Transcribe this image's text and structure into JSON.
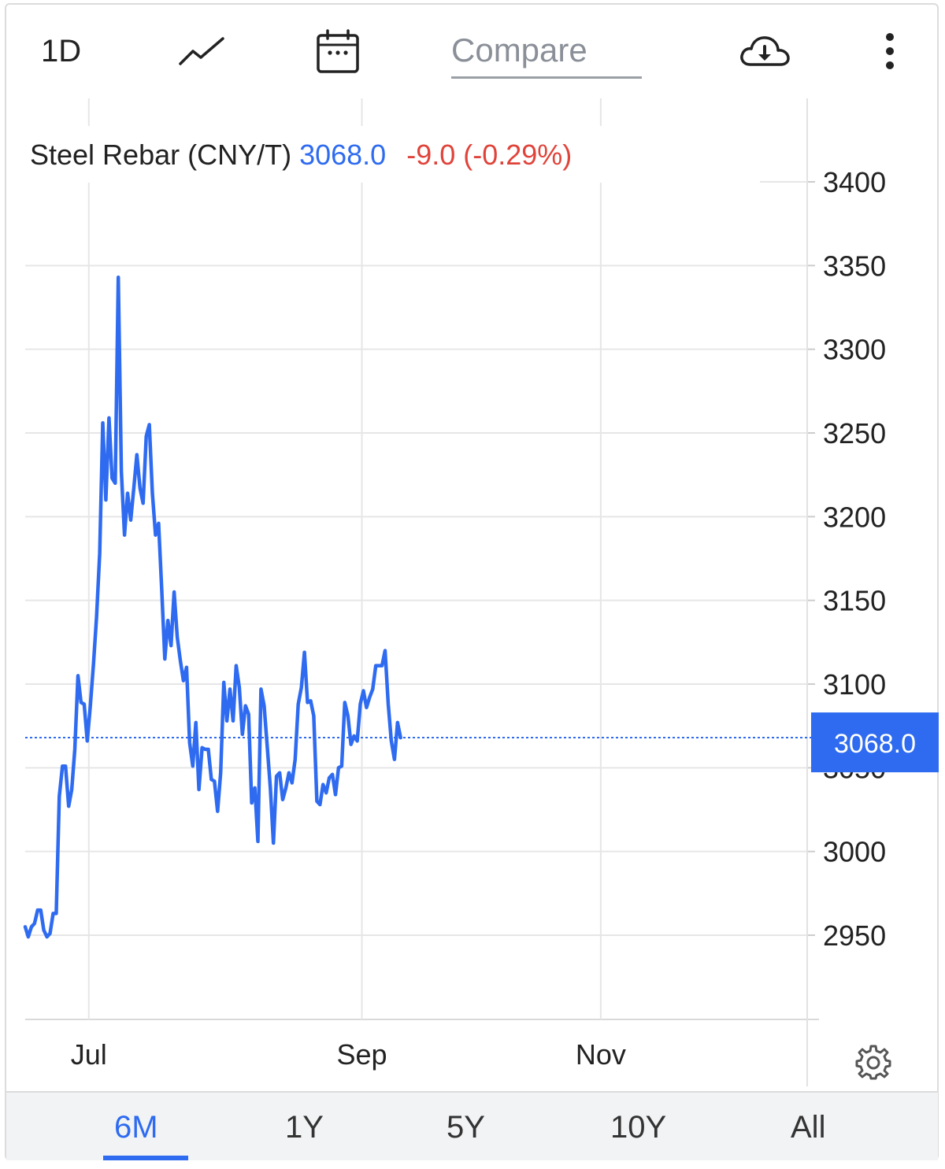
{
  "toolbar": {
    "period_label": "1D",
    "line_icon": "line-chart-icon",
    "calendar_icon": "calendar-icon",
    "compare_placeholder": "Compare",
    "download_icon": "cloud-download-icon",
    "more_icon": "more-vertical-icon"
  },
  "legend": {
    "name": "Steel Rebar (CNY/T)",
    "price": "3068.0",
    "change": "-9.0 (-0.29%)"
  },
  "price_tag": "3068.0",
  "settings_icon": "gear-icon",
  "ranges": [
    {
      "label": "6M",
      "active": true
    },
    {
      "label": "1Y",
      "active": false
    },
    {
      "label": "5Y",
      "active": false
    },
    {
      "label": "10Y",
      "active": false
    },
    {
      "label": "All",
      "active": false
    }
  ],
  "colors": {
    "line": "#2e6bf0",
    "negative": "#e0433a",
    "grid": "#e6e6e6"
  },
  "chart_data": {
    "type": "line",
    "title": "Steel Rebar (CNY/T)",
    "ylim": [
      2900,
      3420
    ],
    "yticks": [
      3400,
      3350,
      3300,
      3250,
      3200,
      3150,
      3100,
      3050,
      3000,
      2950
    ],
    "xticks": [
      {
        "label": "Jul",
        "index": 20
      },
      {
        "label": "Sep",
        "index": 108
      },
      {
        "label": "Nov",
        "index": 185
      }
    ],
    "grid": true,
    "last_value": 3068.0,
    "series": [
      {
        "values": [
          2955,
          2949,
          2955,
          2957,
          2965,
          2965,
          2953,
          2949,
          2951,
          2963,
          2963,
          3033,
          3051,
          3051,
          3027,
          3037,
          3061,
          3105,
          3089,
          3088,
          3066,
          3087,
          3112,
          3140,
          3178,
          3256,
          3210,
          3259,
          3223,
          3220,
          3343,
          3227,
          3189,
          3214,
          3198,
          3217,
          3237,
          3217,
          3208,
          3248,
          3255,
          3214,
          3189,
          3196,
          3156,
          3115,
          3138,
          3123,
          3155,
          3128,
          3114,
          3102,
          3110,
          3065,
          3051,
          3077,
          3037,
          3062,
          3061,
          3061,
          3043,
          3042,
          3024,
          3047,
          3101,
          3078,
          3097,
          3078,
          3111,
          3098,
          3070,
          3087,
          3082,
          3029,
          3038,
          3006,
          3097,
          3087,
          3063,
          3038,
          3005,
          3045,
          3047,
          3031,
          3038,
          3047,
          3041,
          3055,
          3088,
          3098,
          3119,
          3089,
          3090,
          3081,
          3030,
          3028,
          3040,
          3035,
          3044,
          3046,
          3034,
          3050,
          3051,
          3089,
          3081,
          3064,
          3069,
          3066,
          3088,
          3096,
          3086,
          3092,
          3097,
          3111,
          3111,
          3111,
          3120,
          3088,
          3066,
          3055,
          3077,
          3068
        ]
      }
    ]
  }
}
